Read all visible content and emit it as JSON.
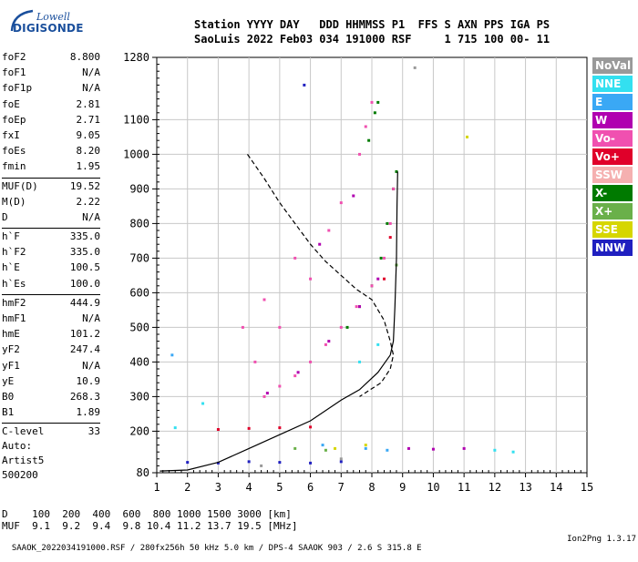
{
  "logo": {
    "line1": "Lowell",
    "line2": "DIGISONDE"
  },
  "header": {
    "line1": "Station YYYY DAY   DDD HHMMSS P1  FFS S AXN PPS IGA PS",
    "line2": "SaoLuis 2022 Feb03 034 191000 RSF     1 715 100 00- 11"
  },
  "params": [
    {
      "k": "foF2",
      "v": "8.800"
    },
    {
      "k": "foF1",
      "v": "N/A"
    },
    {
      "k": "foF1p",
      "v": "N/A"
    },
    {
      "k": "foE",
      "v": "2.81"
    },
    {
      "k": "foEp",
      "v": "2.71"
    },
    {
      "k": "fxI",
      "v": "9.05"
    },
    {
      "k": "foEs",
      "v": "8.20"
    },
    {
      "k": "fmin",
      "v": "1.95"
    },
    {
      "k": "MUF(D)",
      "v": "19.52"
    },
    {
      "k": "M(D)",
      "v": "2.22"
    },
    {
      "k": "D",
      "v": "N/A"
    },
    {
      "k": "h`F",
      "v": "335.0"
    },
    {
      "k": "h`F2",
      "v": "335.0"
    },
    {
      "k": "h`E",
      "v": "100.5"
    },
    {
      "k": "h`Es",
      "v": "100.0"
    },
    {
      "k": "hmF2",
      "v": "444.9"
    },
    {
      "k": "hmF1",
      "v": "N/A"
    },
    {
      "k": "hmE",
      "v": "101.2"
    },
    {
      "k": "yF2",
      "v": "247.4"
    },
    {
      "k": "yF1",
      "v": "N/A"
    },
    {
      "k": "yE",
      "v": "10.9"
    },
    {
      "k": "B0",
      "v": "268.3"
    },
    {
      "k": "B1",
      "v": "1.89"
    },
    {
      "k": "C-level",
      "v": "33"
    }
  ],
  "auto": {
    "line1": "Auto:",
    "line2": "Artist5",
    "line3": "500200"
  },
  "legend": [
    {
      "label": "NoVal",
      "color": "#999999"
    },
    {
      "label": "NNE",
      "color": "#33e0f0"
    },
    {
      "label": "E",
      "color": "#3aa8f5"
    },
    {
      "label": "W",
      "color": "#b000b0"
    },
    {
      "label": "Vo-",
      "color": "#f050b0"
    },
    {
      "label": "Vo+",
      "color": "#e0002a"
    },
    {
      "label": "SSW",
      "color": "#f5b0b0"
    },
    {
      "label": "X-",
      "color": "#007a00"
    },
    {
      "label": "X+",
      "color": "#6ab04a"
    },
    {
      "label": "SSE",
      "color": "#d6d600"
    },
    {
      "label": "NNW",
      "color": "#2020c0"
    }
  ],
  "muf_table": {
    "row1": "D    100  200  400  600  800 1000 1500 3000 [km]",
    "row2": "MUF  9.1  9.2  9.4  9.8 10.4 11.2 13.7 19.5 [MHz]"
  },
  "footer": {
    "left": "SAAOK_2022034191000.RSF / 280fx256h 50 kHz 5.0 km / DPS-4 SAAOK 903 / 2.6 S 315.8 E",
    "right": "Ion2Png 1.3.17"
  },
  "chart_data": {
    "type": "scatter",
    "x_ticks": [
      "1",
      "2",
      "3",
      "4",
      "5",
      "6",
      "7",
      "8",
      "9",
      "10",
      "11",
      "12",
      "13",
      "14",
      "15"
    ],
    "y_ticks": [
      "80",
      "200",
      "300",
      "400",
      "500",
      "600",
      "700",
      "800",
      "900",
      "1000",
      "1100",
      "1280"
    ],
    "xlim": [
      1,
      15
    ],
    "ylim": [
      80,
      1280
    ],
    "grid": true,
    "legend_position": "right",
    "series": [
      {
        "name": "X-",
        "color": "#007a00",
        "points": [
          [
            7.2,
            500
          ],
          [
            7.6,
            560
          ],
          [
            8.0,
            620
          ],
          [
            8.3,
            700
          ],
          [
            8.5,
            800
          ],
          [
            8.7,
            900
          ],
          [
            8.8,
            950
          ],
          [
            7.9,
            1040
          ],
          [
            8.1,
            1120
          ],
          [
            8.2,
            1150
          ]
        ]
      },
      {
        "name": "Vo-",
        "color": "#f050b0",
        "points": [
          [
            4.5,
            300
          ],
          [
            5.0,
            330
          ],
          [
            5.5,
            360
          ],
          [
            6.0,
            400
          ],
          [
            6.5,
            450
          ],
          [
            7.0,
            500
          ],
          [
            7.5,
            560
          ],
          [
            8.0,
            620
          ],
          [
            8.4,
            700
          ],
          [
            8.6,
            800
          ],
          [
            8.7,
            900
          ],
          [
            4.2,
            400
          ],
          [
            5.0,
            500
          ],
          [
            6.0,
            640
          ],
          [
            6.6,
            780
          ],
          [
            7.0,
            860
          ],
          [
            7.6,
            1000
          ],
          [
            7.8,
            1080
          ],
          [
            8.0,
            1150
          ],
          [
            3.8,
            500
          ],
          [
            4.5,
            580
          ],
          [
            5.5,
            700
          ]
        ]
      },
      {
        "name": "W",
        "color": "#b000b0",
        "points": [
          [
            4.6,
            310
          ],
          [
            5.6,
            370
          ],
          [
            6.6,
            460
          ],
          [
            7.6,
            560
          ],
          [
            8.2,
            640
          ],
          [
            6.3,
            740
          ],
          [
            7.4,
            880
          ],
          [
            9.2,
            150
          ],
          [
            10.0,
            148
          ],
          [
            11.0,
            150
          ]
        ]
      },
      {
        "name": "Vo+",
        "color": "#e0002a",
        "points": [
          [
            3.0,
            205
          ],
          [
            4.0,
            208
          ],
          [
            5.0,
            210
          ],
          [
            6.0,
            212
          ],
          [
            8.4,
            640
          ],
          [
            8.6,
            760
          ]
        ]
      },
      {
        "name": "NNE",
        "color": "#33e0f0",
        "points": [
          [
            1.6,
            210
          ],
          [
            2.5,
            280
          ],
          [
            7.6,
            400
          ],
          [
            8.2,
            450
          ],
          [
            12.0,
            145
          ],
          [
            12.6,
            140
          ]
        ]
      },
      {
        "name": "E",
        "color": "#3aa8f5",
        "points": [
          [
            1.5,
            420
          ],
          [
            6.4,
            160
          ],
          [
            7.8,
            150
          ],
          [
            8.5,
            145
          ]
        ]
      },
      {
        "name": "SSE",
        "color": "#d6d600",
        "points": [
          [
            6.8,
            150
          ],
          [
            7.8,
            160
          ],
          [
            11.1,
            1050
          ]
        ]
      },
      {
        "name": "X+",
        "color": "#6ab04a",
        "points": [
          [
            5.5,
            150
          ],
          [
            6.5,
            145
          ],
          [
            8.8,
            680
          ]
        ]
      },
      {
        "name": "NNW",
        "color": "#2020c0",
        "points": [
          [
            2.0,
            110
          ],
          [
            3.0,
            108
          ],
          [
            4.0,
            112
          ],
          [
            5.0,
            110
          ],
          [
            6.0,
            108
          ],
          [
            7.0,
            112
          ],
          [
            5.8,
            1200
          ]
        ]
      },
      {
        "name": "NoVal",
        "color": "#999999",
        "points": [
          [
            4.4,
            100
          ],
          [
            7.0,
            120
          ],
          [
            9.4,
            1250
          ]
        ]
      }
    ],
    "profile_solid": [
      [
        1.1,
        85
      ],
      [
        2.0,
        88
      ],
      [
        3.0,
        110
      ],
      [
        4.0,
        150
      ],
      [
        5.0,
        190
      ],
      [
        6.0,
        230
      ],
      [
        7.0,
        290
      ],
      [
        7.6,
        320
      ],
      [
        8.2,
        370
      ],
      [
        8.6,
        420
      ],
      [
        8.7,
        460
      ],
      [
        8.75,
        560
      ],
      [
        8.8,
        700
      ],
      [
        8.82,
        850
      ],
      [
        8.84,
        950
      ]
    ],
    "profile_dashed": [
      [
        3.95,
        1000
      ],
      [
        4.5,
        930
      ],
      [
        5.0,
        860
      ],
      [
        5.5,
        800
      ],
      [
        6.0,
        740
      ],
      [
        6.5,
        690
      ],
      [
        7.0,
        650
      ],
      [
        7.5,
        610
      ],
      [
        8.0,
        580
      ],
      [
        8.4,
        520
      ],
      [
        8.6,
        460
      ],
      [
        8.7,
        420
      ],
      [
        8.6,
        380
      ],
      [
        8.3,
        340
      ],
      [
        7.6,
        300
      ]
    ]
  }
}
